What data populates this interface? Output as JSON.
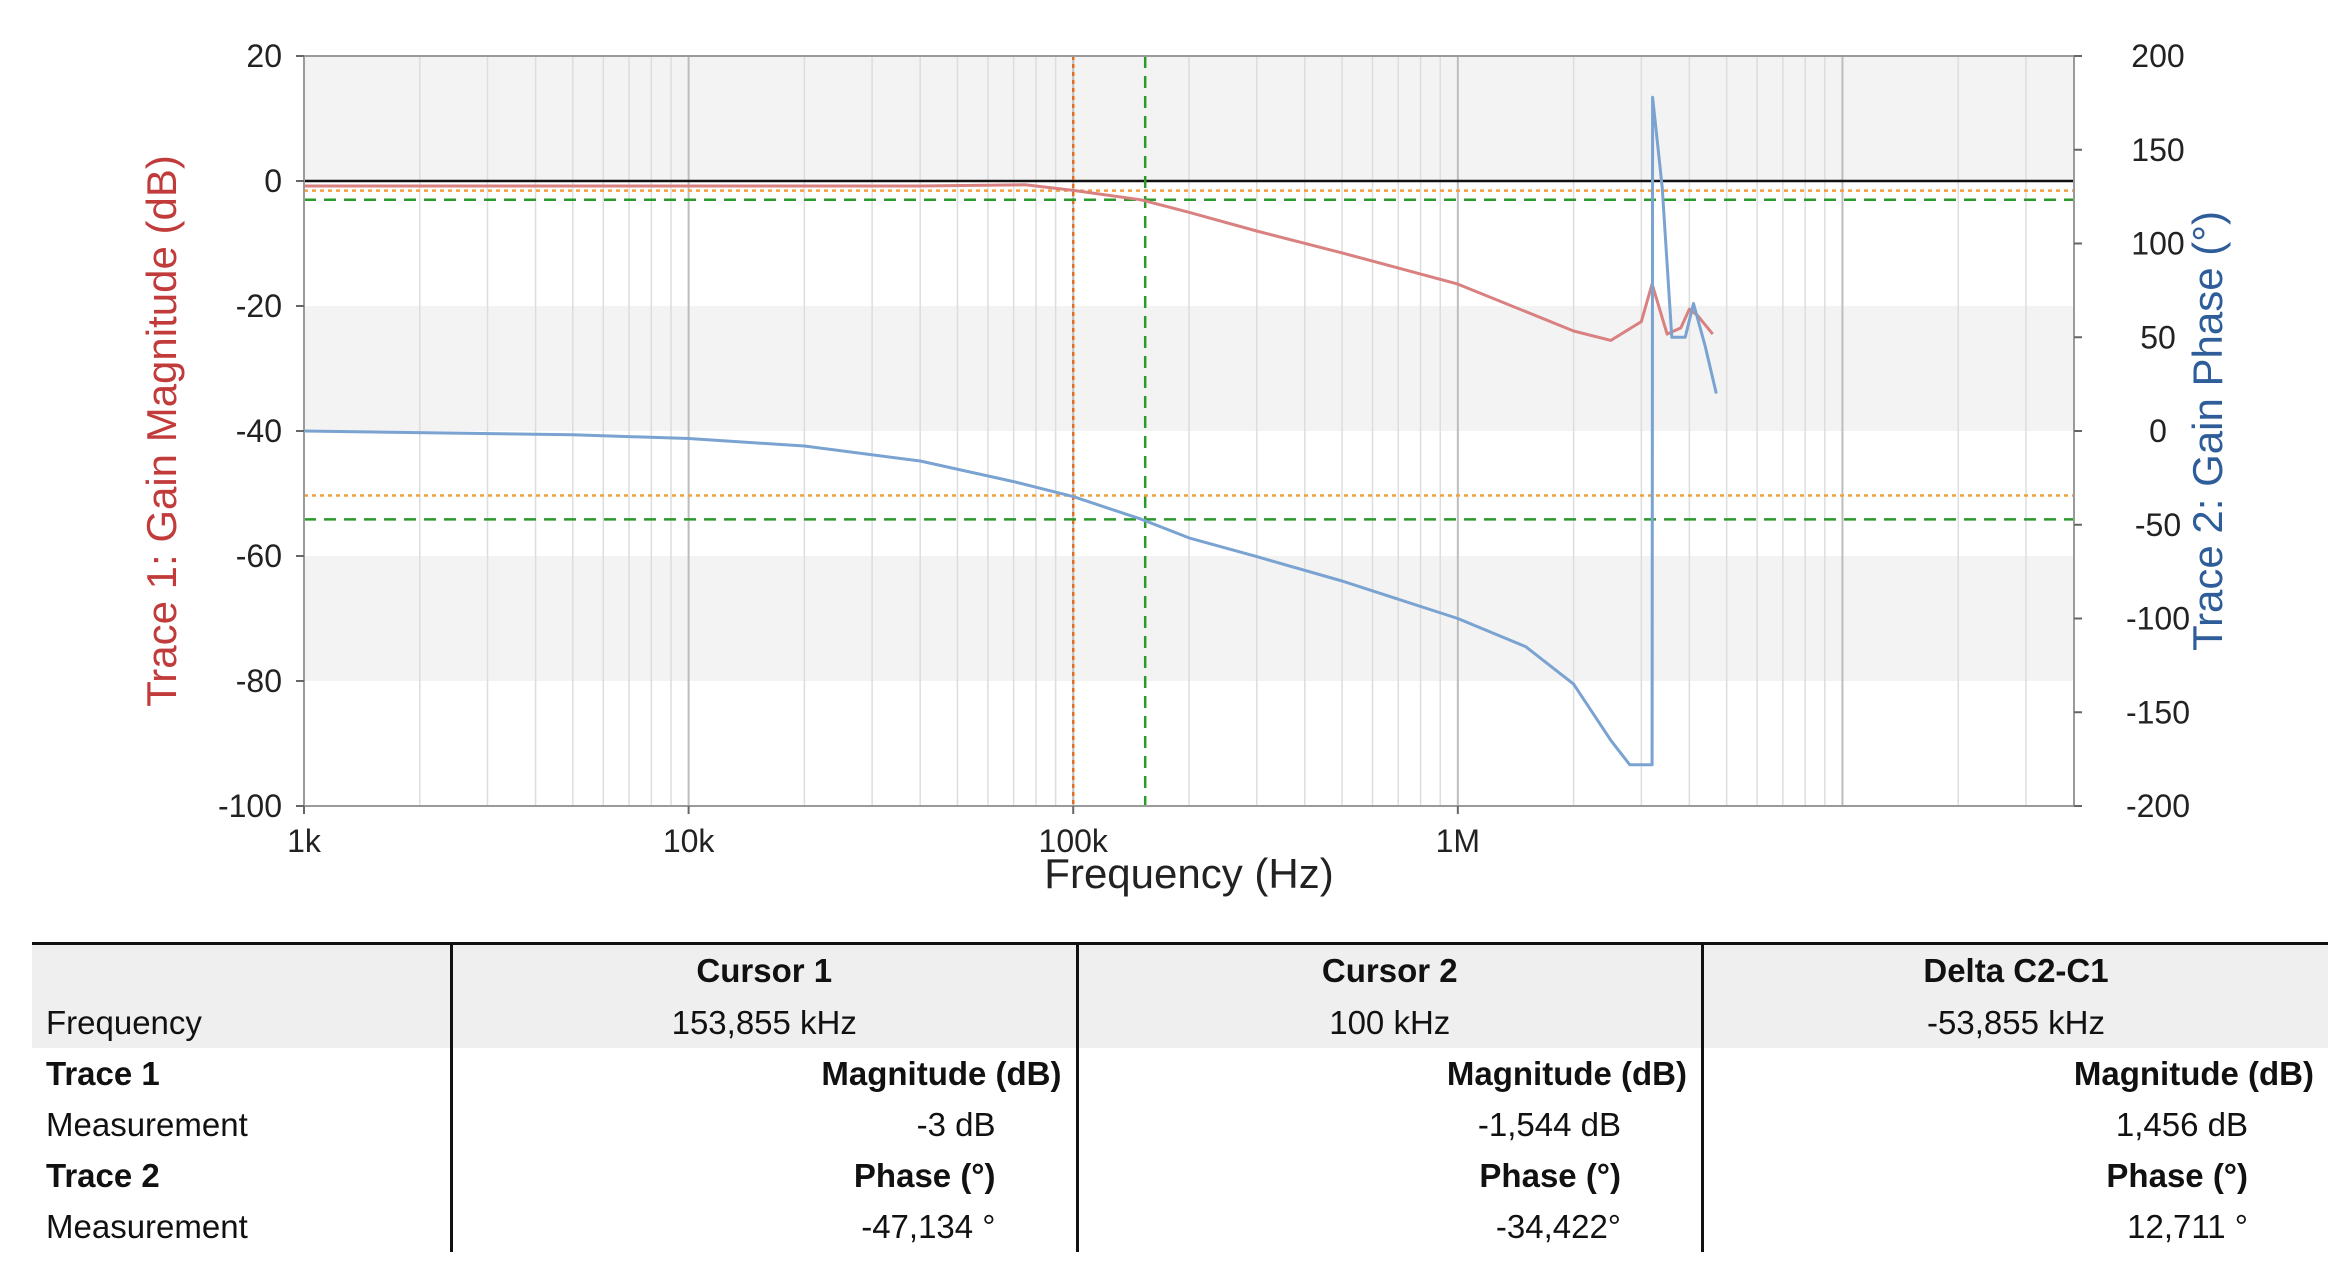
{
  "chart_data": {
    "type": "line",
    "xlabel": "Frequency (Hz)",
    "ylabel_left": "Trace 1: Gain Magnitude (dB)",
    "ylabel_right": "Trace 2: Gain Phase (°)",
    "x_scale": "log",
    "xlim": [
      1000,
      40000000
    ],
    "ylim_left": [
      -100,
      20
    ],
    "ylim_right": [
      -200,
      200
    ],
    "x_ticks": [
      {
        "value": 1000,
        "label": "1k"
      },
      {
        "value": 10000,
        "label": "10k"
      },
      {
        "value": 100000,
        "label": "100k"
      },
      {
        "value": 1000000,
        "label": "1M"
      }
    ],
    "y_ticks_left": [
      {
        "value": 20,
        "label": "20"
      },
      {
        "value": 0,
        "label": "0"
      },
      {
        "value": -20,
        "label": "-20"
      },
      {
        "value": -40,
        "label": "-40"
      },
      {
        "value": -60,
        "label": "-60"
      },
      {
        "value": -80,
        "label": "-80"
      },
      {
        "value": -100,
        "label": "-100"
      }
    ],
    "y_ticks_right": [
      {
        "value": 200,
        "label": "200"
      },
      {
        "value": 150,
        "label": "150"
      },
      {
        "value": 100,
        "label": "100"
      },
      {
        "value": 50,
        "label": "50"
      },
      {
        "value": 0,
        "label": "0"
      },
      {
        "value": -50,
        "label": "-50"
      },
      {
        "value": -100,
        "label": "-100"
      },
      {
        "value": -150,
        "label": "-150"
      },
      {
        "value": -200,
        "label": "-200"
      }
    ],
    "grid": true,
    "series": [
      {
        "axis": "left",
        "color": "#d98080",
        "x": [
          1000,
          10000,
          40000,
          75000,
          100000,
          150000,
          200000,
          300000,
          500000,
          1000000,
          2000000,
          2500000,
          3000000,
          3200000,
          3500000,
          3800000,
          4000000,
          4200000,
          4600000
        ],
        "y": [
          -0.8,
          -0.8,
          -0.8,
          -0.6,
          -1.5,
          -3.0,
          -5.0,
          -8.0,
          -11.5,
          -16.5,
          -24.0,
          -25.5,
          -22.5,
          -16.5,
          -24.5,
          -23.5,
          -20.5,
          -21.5,
          -24.5
        ]
      },
      {
        "axis": "right",
        "color": "#7aa3d1",
        "x": [
          1000,
          5000,
          10000,
          20000,
          40000,
          70000,
          100000,
          150000,
          200000,
          300000,
          500000,
          1000000,
          1500000,
          2000000,
          2500000,
          2800000,
          3200000,
          3210000,
          3400000,
          3600000,
          3900000,
          4100000,
          4400000,
          4700000
        ],
        "y": [
          0,
          -2,
          -4,
          -8,
          -16,
          -27,
          -35,
          -47,
          -57,
          -67,
          -80,
          -100,
          -115,
          -135,
          -165,
          -178,
          -178,
          178,
          130,
          50,
          50,
          68,
          45,
          20
        ]
      }
    ],
    "cursors": [
      {
        "axis": "x",
        "value": 100000,
        "color": "#e07020",
        "style": "dotted"
      },
      {
        "axis": "x",
        "value": 153855,
        "color": "#2a9a2a",
        "style": "dashed"
      },
      {
        "axis": "left",
        "value": -1.544,
        "color": "#f0a040",
        "style": "dotted"
      },
      {
        "axis": "left",
        "value": -3,
        "color": "#2a9a2a",
        "style": "dashed"
      },
      {
        "axis": "right",
        "value": -34.422,
        "color": "#f0a040",
        "style": "dotted"
      },
      {
        "axis": "right",
        "value": -47.134,
        "color": "#2a9a2a",
        "style": "dashed"
      }
    ]
  },
  "table": {
    "headers": [
      "",
      "Cursor 1",
      "Cursor 2",
      "Delta C2-C1"
    ],
    "frequency": {
      "label": "Frequency",
      "values": [
        "153,855 kHz",
        "100 kHz",
        "-53,855 kHz"
      ]
    },
    "trace1": {
      "label": "Trace 1",
      "values": [
        "Magnitude (dB)",
        "Magnitude (dB)",
        "Magnitude (dB)"
      ]
    },
    "measurement1": {
      "label": "Measurement",
      "values": [
        "-3 dB",
        "-1,544 dB",
        "1,456 dB"
      ]
    },
    "trace2": {
      "label": "Trace 2",
      "values": [
        "Phase (°)",
        "Phase (°)",
        "Phase (°)"
      ]
    },
    "measurement2": {
      "label": "Measurement",
      "values": [
        "-47,134 °",
        "-34,422°",
        "12,711 °"
      ]
    }
  }
}
